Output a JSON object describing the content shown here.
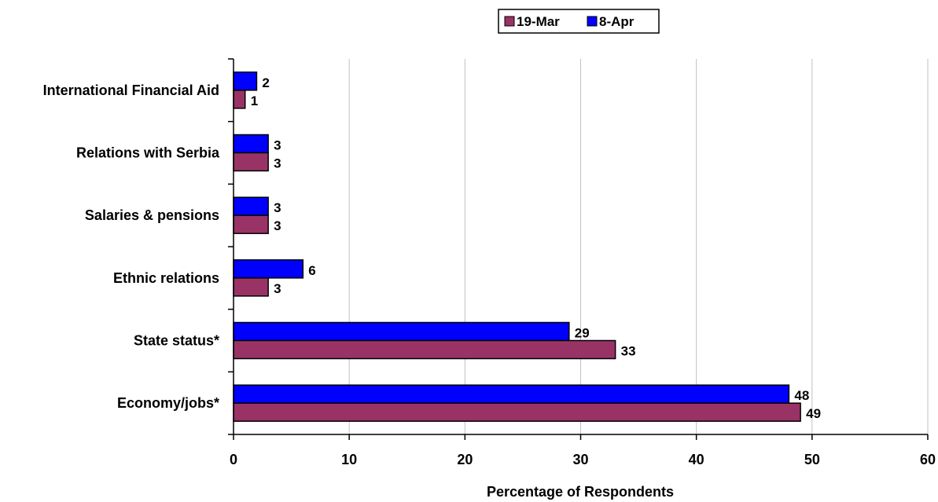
{
  "chart_data": {
    "type": "bar",
    "orientation": "horizontal",
    "categories": [
      "International Financial Aid",
      "Relations with Serbia",
      "Salaries & pensions",
      "Ethnic relations",
      "State status*",
      "Economy/jobs*"
    ],
    "series": [
      {
        "name": "19-Mar",
        "color": "#993366",
        "values": [
          1,
          3,
          3,
          3,
          33,
          49
        ]
      },
      {
        "name": "8-Apr",
        "color": "#0000ff",
        "values": [
          2,
          3,
          3,
          6,
          29,
          48
        ]
      }
    ],
    "xlabel": "Percentage of Respondents",
    "ylabel": "",
    "xlim": [
      0,
      60
    ],
    "xticks": [
      0,
      10,
      20,
      30,
      40,
      50,
      60
    ],
    "grid": "vertical",
    "legend": "top-center",
    "data_labels": true
  }
}
